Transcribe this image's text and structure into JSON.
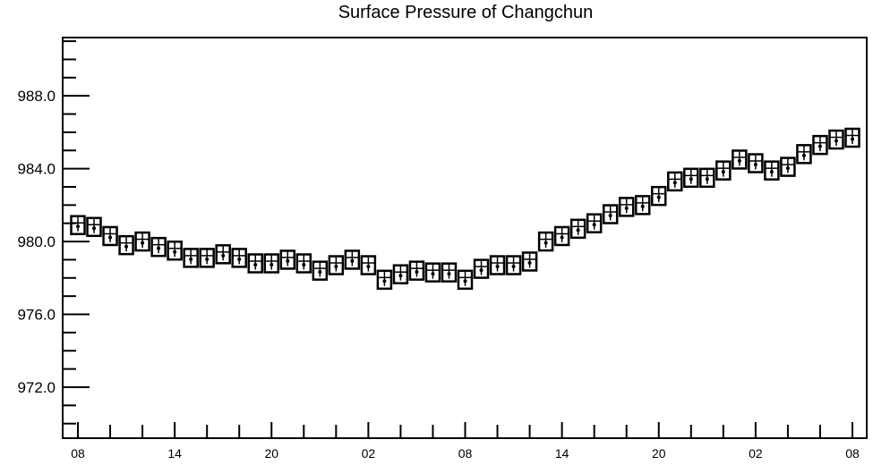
{
  "chart_data": {
    "type": "scatter",
    "title": "Surface Pressure of Changchun",
    "xlabel": "",
    "ylabel": "",
    "x_tick_labels": [
      "08",
      "14",
      "20",
      "02",
      "08",
      "14",
      "20",
      "02",
      "08"
    ],
    "x_tick_hours": [
      0,
      6,
      12,
      18,
      24,
      30,
      36,
      42,
      48
    ],
    "xlim": [
      0,
      48
    ],
    "y_tick_labels": [
      "972.0",
      "976.0",
      "980.0",
      "984.0",
      "988.0"
    ],
    "y_tick_values": [
      972,
      976,
      980,
      984,
      988
    ],
    "ylim": [
      969.2,
      991.2
    ],
    "grid": false,
    "series": [
      {
        "x": [
          0,
          1,
          2,
          3,
          4,
          5,
          6,
          7,
          8,
          9,
          10,
          11,
          12,
          13,
          14,
          15,
          16,
          17,
          18,
          19,
          20,
          21,
          22,
          23,
          24,
          25,
          26,
          27,
          28,
          29,
          30,
          31,
          32,
          33,
          34,
          35,
          36,
          37,
          38,
          39,
          40,
          41,
          42,
          43,
          44,
          45,
          46,
          47,
          48
        ],
        "values": [
          980.9,
          980.8,
          980.3,
          979.8,
          980.0,
          979.7,
          979.5,
          979.1,
          979.1,
          979.3,
          979.1,
          978.8,
          978.8,
          979.0,
          978.8,
          978.4,
          978.7,
          979.0,
          978.7,
          977.9,
          978.2,
          978.4,
          978.3,
          978.3,
          977.9,
          978.5,
          978.7,
          978.7,
          978.9,
          980.0,
          980.3,
          980.7,
          981.0,
          981.5,
          981.9,
          982.0,
          982.5,
          983.3,
          983.5,
          983.5,
          983.9,
          984.5,
          984.3,
          983.9,
          984.1,
          984.8,
          985.3,
          985.6,
          985.7
        ]
      }
    ]
  }
}
